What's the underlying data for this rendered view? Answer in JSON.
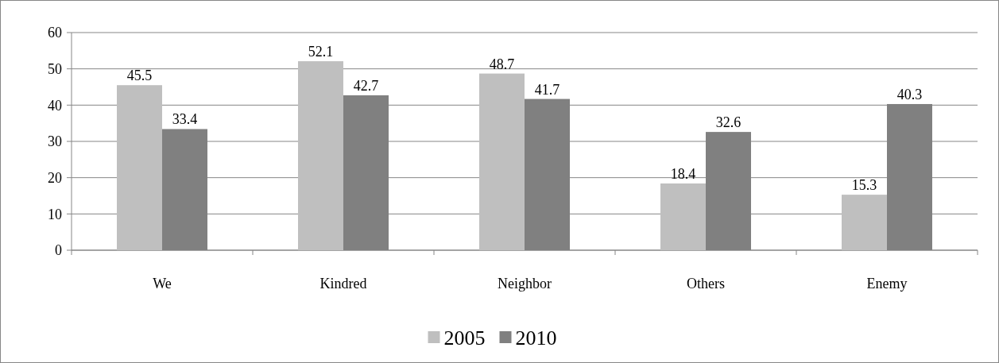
{
  "chart_data": {
    "type": "bar",
    "categories": [
      "We",
      "Kindred",
      "Neighbor",
      "Others",
      "Enemy"
    ],
    "series": [
      {
        "name": "2005",
        "color": "#bfbfbf",
        "values": [
          45.5,
          52.1,
          48.7,
          18.4,
          15.3
        ]
      },
      {
        "name": "2010",
        "color": "#808080",
        "values": [
          33.4,
          42.7,
          41.7,
          32.6,
          40.3
        ]
      }
    ],
    "ylim": [
      0,
      60
    ],
    "yticks": [
      0,
      10,
      20,
      30,
      40,
      50,
      60
    ],
    "grid": "y",
    "legend": "bottom",
    "data_labels": true
  }
}
